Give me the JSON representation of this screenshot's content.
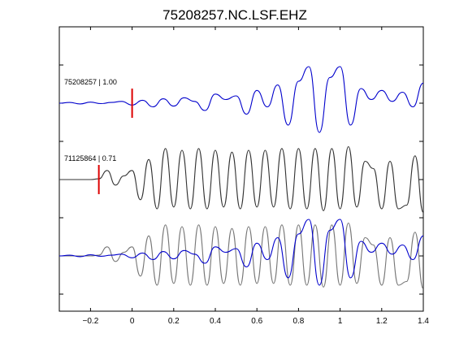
{
  "chart_data": {
    "type": "line",
    "title": "75208257.NC.LSF.EHZ",
    "xlabel": "",
    "ylabel": "",
    "xlim": [
      -0.35,
      1.4
    ],
    "x_ticks": [
      -0.2,
      0,
      0.2,
      0.4,
      0.6,
      0.8,
      1,
      1.2,
      1.4
    ],
    "x_tick_labels": [
      "−0.2",
      "0",
      "0.2",
      "0.4",
      "0.6",
      "0.8",
      "1",
      "1.2",
      "1.4"
    ],
    "grid": false,
    "legend": "none",
    "traces": [
      {
        "label": "75208257 | 1.00",
        "color": "#0000cc",
        "offset": 0,
        "marker_x": 0,
        "x": [
          -0.35,
          -0.3,
          -0.25,
          -0.2,
          -0.15,
          -0.1,
          -0.05,
          0.0,
          0.05,
          0.1,
          0.15,
          0.2,
          0.25,
          0.3,
          0.35,
          0.4,
          0.45,
          0.5,
          0.55,
          0.6,
          0.65,
          0.7,
          0.75,
          0.8,
          0.85,
          0.9,
          0.95,
          1.0,
          1.05,
          1.1,
          1.15,
          1.2,
          1.25,
          1.3,
          1.35,
          1.4
        ],
        "y": [
          0.0,
          0.02,
          -0.02,
          0.03,
          -0.01,
          0.02,
          0.05,
          -0.05,
          0.08,
          -0.1,
          0.12,
          -0.08,
          0.15,
          0.05,
          -0.2,
          0.25,
          0.1,
          0.2,
          -0.3,
          0.35,
          -0.1,
          0.5,
          -0.6,
          0.6,
          1.0,
          -0.8,
          0.7,
          1.0,
          -0.6,
          0.4,
          0.1,
          0.35,
          0.05,
          0.3,
          -0.1,
          0.55
        ]
      },
      {
        "label": "71125864 | 0.71",
        "color": "#333333",
        "offset": 0,
        "marker_x": -0.16,
        "x": [
          -0.35,
          -0.3,
          -0.25,
          -0.2,
          -0.16,
          -0.12,
          -0.08,
          -0.04,
          0.0,
          0.04,
          0.08,
          0.12,
          0.16,
          0.2,
          0.24,
          0.28,
          0.32,
          0.36,
          0.4,
          0.44,
          0.48,
          0.52,
          0.56,
          0.6,
          0.64,
          0.68,
          0.72,
          0.76,
          0.8,
          0.84,
          0.88,
          0.92,
          0.96,
          1.0,
          1.04,
          1.08,
          1.12,
          1.16,
          1.2,
          1.24,
          1.28,
          1.32,
          1.36,
          1.4
        ],
        "y": [
          0.0,
          0.0,
          0.0,
          0.0,
          0.02,
          0.25,
          -0.15,
          0.1,
          0.25,
          -0.55,
          0.55,
          -0.8,
          0.85,
          -0.75,
          0.8,
          -0.8,
          0.85,
          -0.8,
          0.8,
          -0.75,
          0.75,
          -0.8,
          0.8,
          -0.75,
          0.8,
          -0.75,
          0.85,
          -0.8,
          0.85,
          -0.8,
          0.85,
          -0.85,
          0.85,
          -0.8,
          0.9,
          -0.75,
          0.5,
          0.3,
          -0.8,
          0.5,
          -0.8,
          -0.7,
          0.65,
          -0.9
        ]
      },
      {
        "label": "",
        "color": "#0000cc",
        "offset": 0,
        "marker_x": null,
        "x": [],
        "y": []
      },
      {
        "label": "",
        "color": "#777777",
        "offset": 0,
        "marker_x": null,
        "x": [],
        "y": []
      }
    ]
  }
}
